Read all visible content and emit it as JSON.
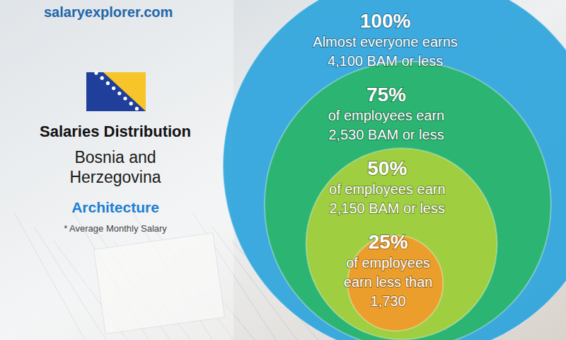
{
  "chart_data": {
    "type": "nested_circles",
    "source": "salaryexplorer.com",
    "title": "Salaries Distribution",
    "subtitle": "Bosnia and Herzegovina",
    "category": "Architecture",
    "note": "* Average Monthly Salary",
    "values": [
      100,
      75,
      50,
      25
    ],
    "value_labels": [
      "100%",
      "75%",
      "50%",
      "25%"
    ],
    "descriptions": [
      [
        "Almost everyone earns"
      ],
      [
        "of employees earn"
      ],
      [
        "of employees earn"
      ],
      [
        "of employees",
        "earn less than"
      ]
    ],
    "salaries": [
      4100,
      2530,
      2150,
      1730
    ],
    "salary_labels": [
      "4,100 BAM or less",
      "2,530 BAM or less",
      "2,150 BAM or less",
      "1,730"
    ],
    "colors": [
      "#2ea5dd",
      "#2bb56b",
      "#a9d13c",
      "#f39b2b"
    ]
  }
}
